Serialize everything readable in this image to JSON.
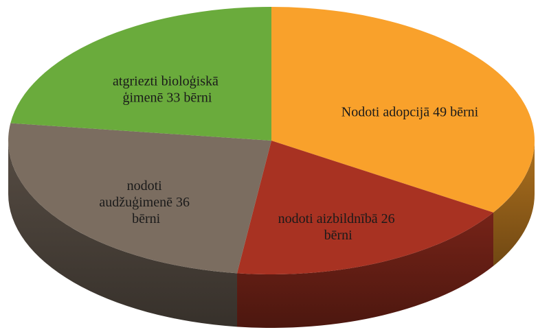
{
  "chart_data": {
    "type": "pie",
    "values": [
      49,
      26,
      36,
      33
    ],
    "value_labels": [
      "Nodoti adopcijā 49 bērni",
      "nodoti aizbildnībā 26 bērni",
      "nodoti audžuģimenē 36 bērni",
      "atgriezti bioloģiskā ģimenē 33 bērni"
    ],
    "colors": [
      "#f9a12b",
      "#a83222",
      "#7b6d60",
      "#6aab3c"
    ]
  }
}
